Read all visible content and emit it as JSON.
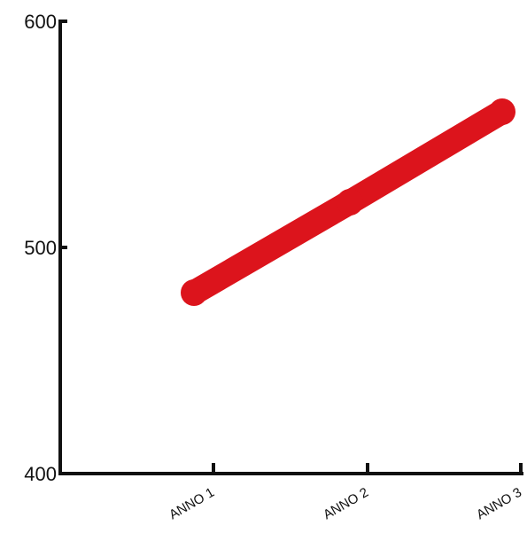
{
  "chart_data": {
    "type": "line",
    "title": "",
    "xlabel": "",
    "ylabel": "",
    "categories": [
      "ANNO 1",
      "ANNO 2",
      "ANNO 3"
    ],
    "series": [
      {
        "values": [
          480,
          520,
          560
        ]
      }
    ],
    "ylim": [
      400,
      600
    ],
    "yticks": [
      "400",
      "500",
      "600"
    ],
    "grid": false,
    "legend": "none",
    "colors": {
      "series": "#dc141c",
      "axis": "#111111"
    }
  }
}
